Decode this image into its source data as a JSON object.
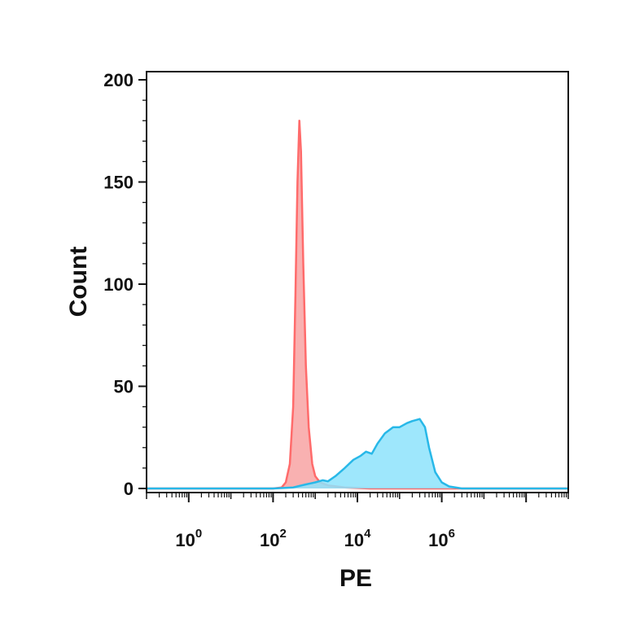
{
  "chart_data": {
    "type": "area",
    "title": "",
    "xlabel": "PE",
    "ylabel": "Count",
    "x_scale": "log10",
    "xlim": [
      0.1,
      1000000000
    ],
    "ylim": [
      -2,
      204
    ],
    "grid": false,
    "y_ticks": [
      {
        "value": 0,
        "label": "0"
      },
      {
        "value": 50,
        "label": "50"
      },
      {
        "value": 100,
        "label": "100"
      },
      {
        "value": 150,
        "label": "150"
      },
      {
        "value": 200,
        "label": "200"
      }
    ],
    "x_ticks": [
      {
        "value": 1,
        "base": "10",
        "exp": "0"
      },
      {
        "value": 100,
        "base": "10",
        "exp": "2"
      },
      {
        "value": 10000,
        "base": "10",
        "exp": "4"
      },
      {
        "value": 1000000,
        "base": "10",
        "exp": "6"
      }
    ],
    "series": [
      {
        "color": "#ff6b6b",
        "fill": "#f8a9a9",
        "points": [
          [
            0.1,
            0
          ],
          [
            100,
            0
          ],
          [
            160,
            0.5
          ],
          [
            200,
            3
          ],
          [
            250,
            12
          ],
          [
            300,
            40
          ],
          [
            340,
            95
          ],
          [
            380,
            150
          ],
          [
            420,
            180
          ],
          [
            460,
            165
          ],
          [
            520,
            110
          ],
          [
            600,
            60
          ],
          [
            700,
            30
          ],
          [
            850,
            12
          ],
          [
            1000,
            6
          ],
          [
            1300,
            3
          ],
          [
            2000,
            1.5
          ],
          [
            5000,
            0.5
          ],
          [
            20000,
            0
          ],
          [
            1000000000,
            0
          ]
        ]
      },
      {
        "color": "#28b8e8",
        "fill": "#8de3fb",
        "points": [
          [
            0.1,
            0
          ],
          [
            100,
            0
          ],
          [
            300,
            0.5
          ],
          [
            600,
            2
          ],
          [
            1000,
            3
          ],
          [
            1500,
            4
          ],
          [
            2000,
            3.5
          ],
          [
            3000,
            6
          ],
          [
            5000,
            10
          ],
          [
            8000,
            14
          ],
          [
            12000,
            16
          ],
          [
            16000,
            18
          ],
          [
            22000,
            17
          ],
          [
            30000,
            22
          ],
          [
            45000,
            27
          ],
          [
            70000,
            30
          ],
          [
            100000,
            30
          ],
          [
            150000,
            32
          ],
          [
            200000,
            33
          ],
          [
            300000,
            34
          ],
          [
            400000,
            30
          ],
          [
            500000,
            20
          ],
          [
            700000,
            8
          ],
          [
            1000000,
            3
          ],
          [
            1500000,
            1
          ],
          [
            3000000,
            0
          ],
          [
            1000000000,
            0
          ]
        ]
      }
    ]
  }
}
